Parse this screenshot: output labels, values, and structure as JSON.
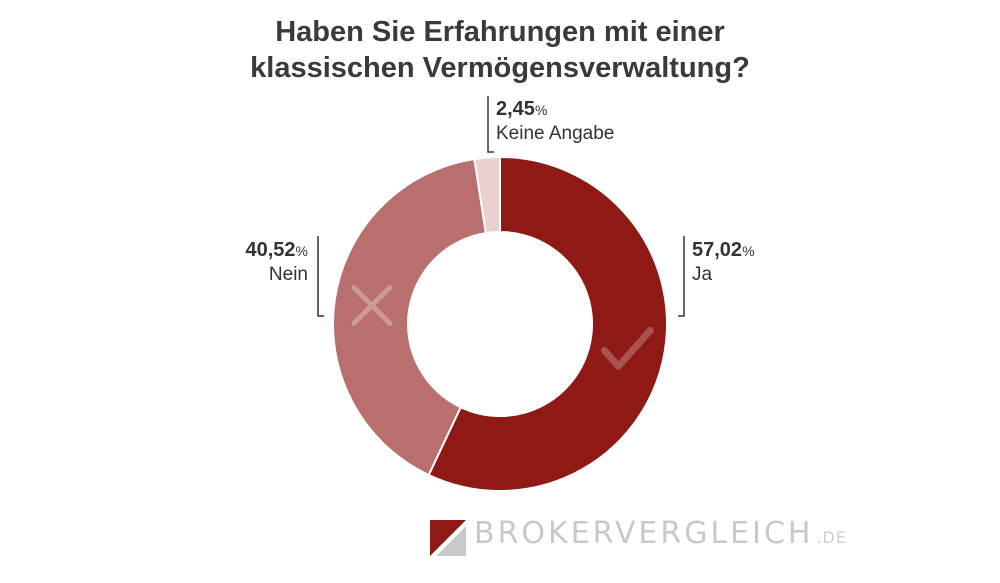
{
  "title_line1": "Haben Sie Erfahrungen mit einer",
  "title_line2": "klassischen Vermögensverwaltung?",
  "chart_data": {
    "type": "pie",
    "variant": "donut",
    "title": "Haben Sie Erfahrungen mit einer klassischen Vermögensverwaltung?",
    "unit": "%",
    "slices": [
      {
        "label": "Ja",
        "value": 57.02,
        "value_text": "57,02",
        "color": "#8e1915",
        "icon": "checkmark-icon"
      },
      {
        "label": "Nein",
        "value": 40.52,
        "value_text": "40,52",
        "color": "#b86f6d",
        "icon": "cross-icon"
      },
      {
        "label": "Keine Angabe",
        "value": 2.45,
        "value_text": "2,45",
        "color": "#ead0d0",
        "icon": ""
      }
    ],
    "legend": "none"
  },
  "labels": {
    "ja": {
      "value": "57,02",
      "pct": "%",
      "name": "Ja"
    },
    "nein": {
      "value": "40,52",
      "pct": "%",
      "name": "Nein"
    },
    "keine": {
      "value": "2,45",
      "pct": "%",
      "name": "Keine Angabe"
    }
  },
  "logo": {
    "brand": "BROKERVERGLEICH",
    "tld": ".DE",
    "colors": {
      "dark": "#8e1915",
      "light": "#c9c9c9"
    }
  }
}
